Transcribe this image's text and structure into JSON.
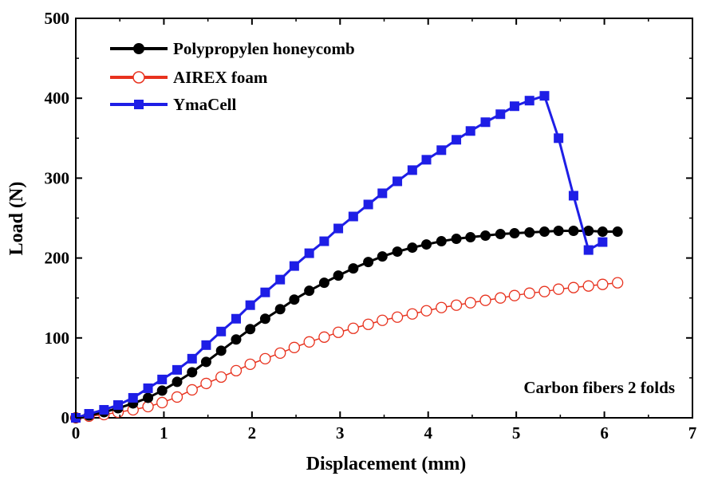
{
  "chart_data": {
    "type": "line",
    "title": "",
    "xlabel": "Displacement (mm)",
    "ylabel": "Load (N)",
    "xlim": [
      0,
      7
    ],
    "ylim": [
      0,
      500
    ],
    "xticks": [
      0,
      1,
      2,
      3,
      4,
      5,
      6,
      7
    ],
    "yticks": [
      0,
      100,
      200,
      300,
      400,
      500
    ],
    "annotation": "Carbon fibers 2 folds",
    "legend_position": "top-left",
    "series": [
      {
        "name": "Polypropylen honeycomb",
        "color": "#000000",
        "marker": "circle-filled",
        "x": [
          0,
          0.15,
          0.32,
          0.48,
          0.65,
          0.82,
          0.98,
          1.15,
          1.32,
          1.48,
          1.65,
          1.82,
          1.98,
          2.15,
          2.32,
          2.48,
          2.65,
          2.82,
          2.98,
          3.15,
          3.32,
          3.48,
          3.65,
          3.82,
          3.98,
          4.15,
          4.32,
          4.48,
          4.65,
          4.82,
          4.98,
          5.15,
          5.32,
          5.48,
          5.65,
          5.82,
          5.98,
          6.15
        ],
        "y": [
          0,
          3,
          7,
          12,
          18,
          25,
          34,
          45,
          57,
          70,
          84,
          98,
          111,
          124,
          136,
          148,
          159,
          169,
          178,
          187,
          195,
          202,
          208,
          213,
          217,
          221,
          224,
          226,
          228,
          230,
          231,
          232,
          233,
          234,
          234,
          234,
          233,
          233
        ]
      },
      {
        "name": "AIREX foam",
        "color": "#e8321e",
        "marker": "circle-open",
        "x": [
          0,
          0.15,
          0.32,
          0.48,
          0.65,
          0.82,
          0.98,
          1.15,
          1.32,
          1.48,
          1.65,
          1.82,
          1.98,
          2.15,
          2.32,
          2.48,
          2.65,
          2.82,
          2.98,
          3.15,
          3.32,
          3.48,
          3.65,
          3.82,
          3.98,
          4.15,
          4.32,
          4.48,
          4.65,
          4.82,
          4.98,
          5.15,
          5.32,
          5.48,
          5.65,
          5.82,
          5.98,
          6.15
        ],
        "y": [
          0,
          2,
          4,
          7,
          10,
          14,
          19,
          26,
          35,
          43,
          51,
          59,
          67,
          74,
          81,
          88,
          95,
          101,
          107,
          112,
          117,
          122,
          126,
          130,
          134,
          138,
          141,
          144,
          147,
          150,
          153,
          156,
          158,
          161,
          163,
          165,
          167,
          169
        ]
      },
      {
        "name": "YmaCell",
        "color": "#1e1ee6",
        "marker": "square-filled",
        "x": [
          0,
          0.15,
          0.32,
          0.48,
          0.65,
          0.82,
          0.98,
          1.15,
          1.32,
          1.48,
          1.65,
          1.82,
          1.98,
          2.15,
          2.32,
          2.48,
          2.65,
          2.82,
          2.98,
          3.15,
          3.32,
          3.48,
          3.65,
          3.82,
          3.98,
          4.15,
          4.32,
          4.48,
          4.65,
          4.82,
          4.98,
          5.15,
          5.32,
          5.48,
          5.65,
          5.82,
          5.98
        ],
        "y": [
          0,
          5,
          10,
          16,
          25,
          37,
          48,
          60,
          74,
          91,
          108,
          124,
          141,
          157,
          173,
          190,
          206,
          221,
          237,
          252,
          267,
          281,
          296,
          310,
          323,
          335,
          348,
          359,
          370,
          380,
          390,
          397,
          403,
          350,
          278,
          210,
          220
        ]
      }
    ]
  }
}
